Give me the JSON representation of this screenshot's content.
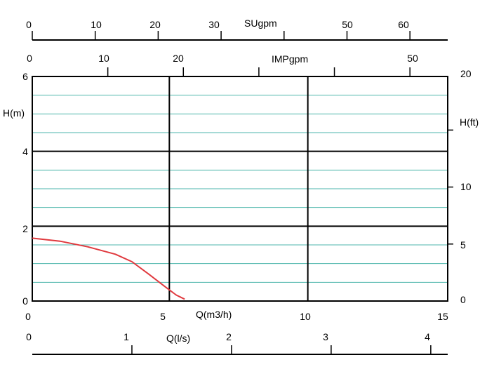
{
  "chart_data": {
    "type": "line",
    "title": "",
    "grid": true,
    "series": [
      {
        "name": "",
        "color": "#e0393e",
        "x": [
          0,
          1,
          2,
          3,
          3.6,
          4.2,
          4.8,
          5.2,
          5.5
        ],
        "y": [
          1.68,
          1.6,
          1.45,
          1.25,
          1.05,
          0.72,
          0.38,
          0.16,
          0.05
        ]
      }
    ],
    "axes": {
      "x_m3h": {
        "unit_label": "Q(m3/h)",
        "range": [
          0,
          15
        ],
        "ticks": [
          "0",
          "5",
          "10",
          "15"
        ]
      },
      "x_ls": {
        "unit_label": "Q(l/s)",
        "range": [
          0,
          4.17
        ],
        "ticks": [
          "0",
          "1",
          "2",
          "3",
          "4"
        ]
      },
      "x_usgpm": {
        "unit_label": "SUgpm",
        "range": [
          0,
          66
        ],
        "ticks": [
          "0",
          "10",
          "20",
          "30",
          "50",
          "60"
        ]
      },
      "x_impgpm": {
        "unit_label": "IMPgpm",
        "range": [
          0,
          55
        ],
        "ticks": [
          "0",
          "10",
          "20",
          "50"
        ]
      },
      "y_m": {
        "unit_label": "H(m)",
        "range": [
          0,
          6
        ],
        "ticks": [
          "0",
          "2",
          "4",
          "6"
        ]
      },
      "y_ft": {
        "unit_label": "H(ft)",
        "range": [
          0,
          19.7
        ],
        "ticks": [
          "0",
          "5",
          "10",
          "20"
        ]
      }
    },
    "colors": {
      "grid_major": "#000000",
      "grid_minor": "#4db6ac",
      "curve": "#e0393e"
    }
  }
}
